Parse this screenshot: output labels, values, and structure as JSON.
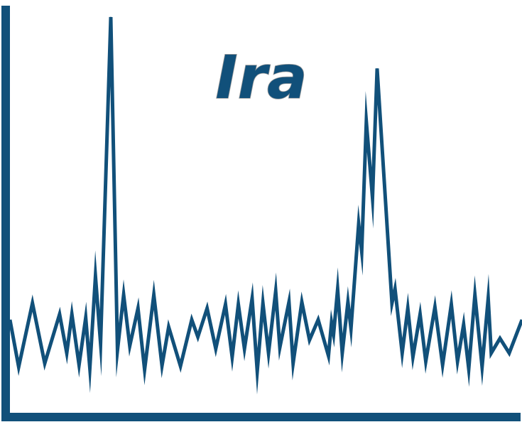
{
  "chart_data": {
    "type": "line",
    "title": "Ira",
    "xlabel": "",
    "ylabel": "",
    "xlim": [
      0,
      100
    ],
    "ylim": [
      0,
      100
    ],
    "grid": false,
    "legend": "none",
    "color": "#11507a",
    "series": [
      {
        "values": [
          [
            0.0,
            21.7
          ],
          [
            1.7,
            9.8
          ],
          [
            4.4,
            25.9
          ],
          [
            6.8,
            10.7
          ],
          [
            9.7,
            23.1
          ],
          [
            11.1,
            13.3
          ],
          [
            12.1,
            23.1
          ],
          [
            13.5,
            10.3
          ],
          [
            14.8,
            22.2
          ],
          [
            15.6,
            9.5
          ],
          [
            16.7,
            32.7
          ],
          [
            17.7,
            15.8
          ],
          [
            19.7,
            98.2
          ],
          [
            21.0,
            14.0
          ],
          [
            22.2,
            28.0
          ],
          [
            23.4,
            15.1
          ],
          [
            25.0,
            24.6
          ],
          [
            26.3,
            9.1
          ],
          [
            28.1,
            28.0
          ],
          [
            29.7,
            10.1
          ],
          [
            31.0,
            19.9
          ],
          [
            33.3,
            10.0
          ],
          [
            35.5,
            21.7
          ],
          [
            36.7,
            17.4
          ],
          [
            38.5,
            24.6
          ],
          [
            40.2,
            14.4
          ],
          [
            42.1,
            25.6
          ],
          [
            43.4,
            12.3
          ],
          [
            44.6,
            25.6
          ],
          [
            45.8,
            14.4
          ],
          [
            47.3,
            27.1
          ],
          [
            48.3,
            8.7
          ],
          [
            49.4,
            25.9
          ],
          [
            50.5,
            13.3
          ],
          [
            51.9,
            28.9
          ],
          [
            52.7,
            14.7
          ],
          [
            54.5,
            26.2
          ],
          [
            55.3,
            10.7
          ],
          [
            57.0,
            26.2
          ],
          [
            58.5,
            16.6
          ],
          [
            60.2,
            21.7
          ],
          [
            62.2,
            12.6
          ],
          [
            62.8,
            21.0
          ],
          [
            63.2,
            18.1
          ],
          [
            64.0,
            29.4
          ],
          [
            64.9,
            13.3
          ],
          [
            66.0,
            26.2
          ],
          [
            66.6,
            19.5
          ],
          [
            68.1,
            45.9
          ],
          [
            68.7,
            39.0
          ],
          [
            69.6,
            71.8
          ],
          [
            70.8,
            52.5
          ],
          [
            71.7,
            85.2
          ],
          [
            74.6,
            25.9
          ],
          [
            75.2,
            29.5
          ],
          [
            76.6,
            13.3
          ],
          [
            77.7,
            24.6
          ],
          [
            78.7,
            12.3
          ],
          [
            80.1,
            23.1
          ],
          [
            81.2,
            11.2
          ],
          [
            83.0,
            24.9
          ],
          [
            84.5,
            10.3
          ],
          [
            86.2,
            25.6
          ],
          [
            87.4,
            11.2
          ],
          [
            88.6,
            20.5
          ],
          [
            89.6,
            9.3
          ],
          [
            90.8,
            28.0
          ],
          [
            92.2,
            9.8
          ],
          [
            93.4,
            27.1
          ],
          [
            94.0,
            13.3
          ],
          [
            95.7,
            17.0
          ],
          [
            97.5,
            13.3
          ],
          [
            100.0,
            21.7
          ]
        ]
      }
    ]
  }
}
